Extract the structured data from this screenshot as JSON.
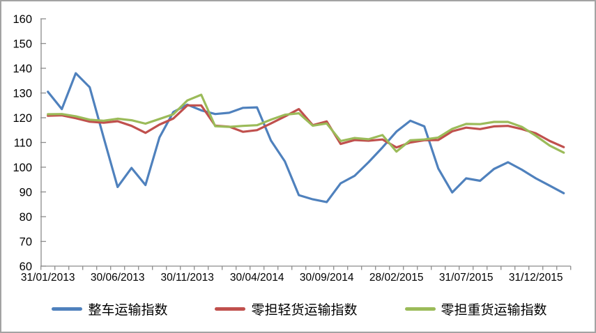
{
  "chart_data": {
    "type": "line",
    "title": "",
    "xlabel": "",
    "ylabel": "",
    "ylim": [
      60,
      160
    ],
    "y_ticks": [
      60,
      70,
      80,
      90,
      100,
      110,
      120,
      130,
      140,
      150,
      160
    ],
    "x_label_every": 5,
    "x_labels_shown": [
      "31/01/2013",
      "30/06/2013",
      "30/11/2013",
      "30/04/2014",
      "30/09/2014",
      "28/02/2015",
      "31/07/2015",
      "31/12/2015"
    ],
    "grid": false,
    "legend_position": "bottom",
    "categories": [
      "31/01/2013",
      "28/02/2013",
      "31/03/2013",
      "30/04/2013",
      "31/05/2013",
      "30/06/2013",
      "31/07/2013",
      "31/08/2013",
      "30/09/2013",
      "31/10/2013",
      "30/11/2013",
      "31/12/2013",
      "31/01/2014",
      "28/02/2014",
      "31/03/2014",
      "30/04/2014",
      "31/05/2014",
      "30/06/2014",
      "31/07/2014",
      "31/08/2014",
      "30/09/2014",
      "31/10/2014",
      "30/11/2014",
      "31/12/2014",
      "31/01/2015",
      "28/02/2015",
      "31/03/2015",
      "30/04/2015",
      "31/05/2015",
      "30/06/2015",
      "31/07/2015",
      "31/08/2015",
      "30/09/2015",
      "31/10/2015",
      "30/11/2015",
      "31/12/2015",
      "31/01/2016",
      "29/02/2016"
    ],
    "series": [
      {
        "name": "整车运输指数",
        "color": "#4F81BD",
        "values": [
          130.5,
          123.5,
          138.0,
          132.3,
          112.0,
          92.0,
          99.7,
          92.8,
          112.0,
          122.3,
          125.3,
          123.0,
          121.5,
          122.0,
          124.0,
          124.2,
          110.8,
          102.3,
          88.7,
          87.0,
          85.9,
          93.5,
          96.5,
          102.0,
          108.0,
          114.4,
          118.8,
          116.5,
          99.5,
          89.8,
          95.5,
          94.5,
          99.3,
          102.0,
          99.0,
          95.5,
          92.5,
          89.5
        ]
      },
      {
        "name": "零担轻货运输指数",
        "color": "#C0504D",
        "values": [
          120.8,
          121.0,
          119.8,
          118.4,
          118.0,
          118.6,
          116.7,
          113.9,
          117.2,
          119.7,
          125.0,
          125.0,
          116.8,
          116.4,
          114.3,
          115.0,
          117.7,
          120.5,
          123.5,
          117.0,
          118.5,
          109.4,
          111.0,
          110.7,
          111.2,
          108.0,
          110.0,
          110.9,
          111.0,
          114.5,
          116.0,
          115.4,
          116.5,
          116.7,
          115.4,
          113.7,
          110.6,
          108.1
        ]
      },
      {
        "name": "零担重货运输指数",
        "color": "#9BBB59",
        "values": [
          121.4,
          121.5,
          120.6,
          119.2,
          118.8,
          119.6,
          119.0,
          117.6,
          119.5,
          121.4,
          127.0,
          129.3,
          116.6,
          116.3,
          116.7,
          117.0,
          119.2,
          121.2,
          121.8,
          116.8,
          117.7,
          110.6,
          111.8,
          111.3,
          113.0,
          106.3,
          110.9,
          111.2,
          112.0,
          115.5,
          117.5,
          117.4,
          118.3,
          118.3,
          116.3,
          112.7,
          108.7,
          105.9
        ]
      }
    ]
  },
  "colors": {
    "background": "#ffffff",
    "axis": "#8c8c8c",
    "frame_border": "#a3a3a3",
    "text": "#000000"
  }
}
